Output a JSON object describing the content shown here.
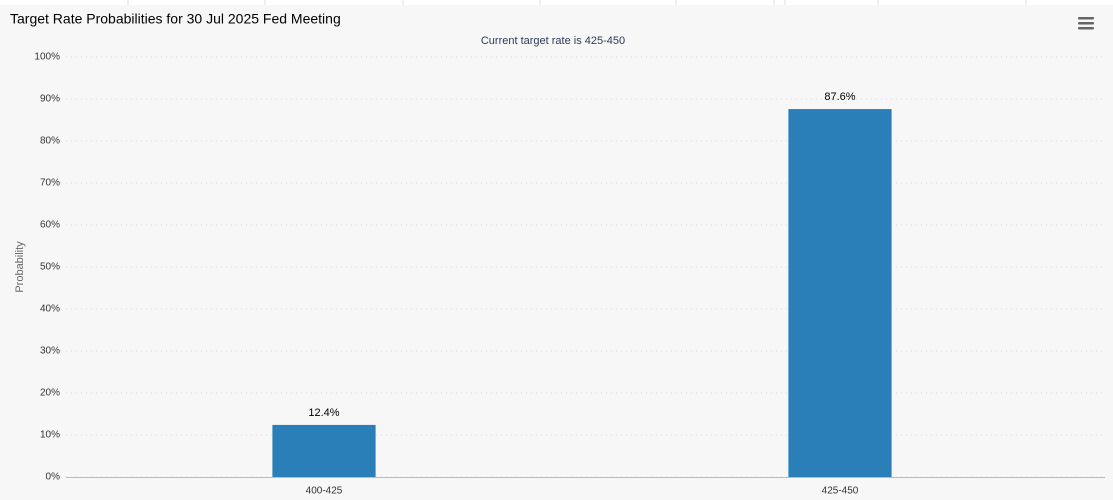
{
  "chart_data": {
    "type": "bar",
    "title": "Target Rate Probabilities for 30 Jul 2025 Fed Meeting",
    "subtitle": "Current target rate is 425-450",
    "y_label": "Probability",
    "categories": [
      "400-425",
      "425-450"
    ],
    "values": [
      12.4,
      87.6
    ],
    "value_labels": [
      "12.4%",
      "87.6%"
    ],
    "color": "#2a7fb8",
    "ylim": [
      0,
      100
    ],
    "yticks": [
      {
        "value": 0,
        "label": "0%"
      },
      {
        "value": 10,
        "label": "10%"
      },
      {
        "value": 20,
        "label": "20%"
      },
      {
        "value": 30,
        "label": "30%"
      },
      {
        "value": 40,
        "label": "40%"
      },
      {
        "value": 50,
        "label": "50%"
      },
      {
        "value": 60,
        "label": "60%"
      },
      {
        "value": 70,
        "label": "70%"
      },
      {
        "value": 80,
        "label": "80%"
      },
      {
        "value": 90,
        "label": "90%"
      },
      {
        "value": 100,
        "label": "100%"
      }
    ],
    "grid": true
  }
}
